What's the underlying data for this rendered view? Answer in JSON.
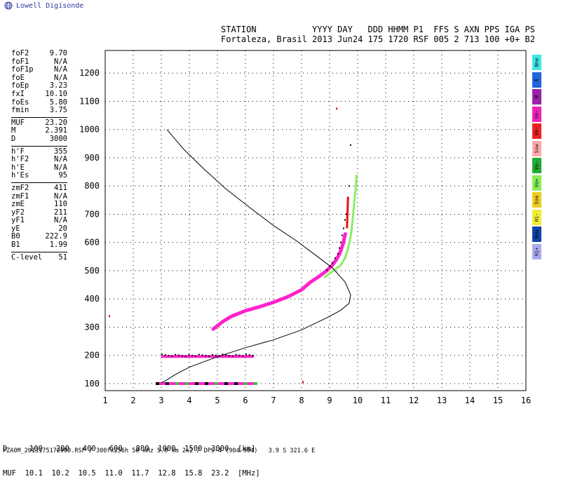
{
  "brand": {
    "label": "Lowell Digisonde"
  },
  "header": {
    "line1": "STATION           YYYY DAY   DDD HHMM P1  FFS S AXN PPS IGA PS",
    "line2": "Fortaleza, Brasil 2013 Jun24 175 1720 RSF 005 2 713 100 +0+ B2"
  },
  "params": [
    {
      "k": "foF2",
      "v": "9.70"
    },
    {
      "k": "foF1",
      "v": "N/A"
    },
    {
      "k": "foF1p",
      "v": "N/A"
    },
    {
      "k": "foE",
      "v": "N/A"
    },
    {
      "k": "foEp",
      "v": "3.23"
    },
    {
      "k": "fxI",
      "v": "10.10"
    },
    {
      "k": "foEs",
      "v": "5.80"
    },
    {
      "k": "fmin",
      "v": "3.75"
    },
    {
      "sep": true
    },
    {
      "k": "MUF",
      "v": "23.20"
    },
    {
      "k": "M",
      "v": "2.391"
    },
    {
      "k": "D",
      "v": "3000"
    },
    {
      "sep": true
    },
    {
      "k": "h'F",
      "v": "355"
    },
    {
      "k": "h'F2",
      "v": "N/A"
    },
    {
      "k": "h'E",
      "v": "N/A"
    },
    {
      "k": "h'Es",
      "v": "95"
    },
    {
      "sep": true
    },
    {
      "k": "zmF2",
      "v": "411"
    },
    {
      "k": "zmF1",
      "v": "N/A"
    },
    {
      "k": "zmE",
      "v": "110"
    },
    {
      "k": "yF2",
      "v": "211"
    },
    {
      "k": "yF1",
      "v": "N/A"
    },
    {
      "k": "yE",
      "v": "20"
    },
    {
      "k": "B0",
      "v": "222.9"
    },
    {
      "k": "B1",
      "v": "1.99"
    },
    {
      "sep": true
    },
    {
      "k": "C-level",
      "v": "51"
    }
  ],
  "legend": [
    {
      "label": "Nne",
      "color": "#3ee6e6"
    },
    {
      "label": "E",
      "color": "#2266dd"
    },
    {
      "label": "W",
      "color": "#9a22aa"
    },
    {
      "label": "Vo-",
      "color": "#ee22bb"
    },
    {
      "label": "X0-",
      "color": "#ee2222"
    },
    {
      "label": "Ssw",
      "color": "#ffaaaa"
    },
    {
      "label": "Vo-",
      "color": "#22aa33"
    },
    {
      "label": "Vo+",
      "color": "#88ee55"
    },
    {
      "label": "Sse",
      "color": "#eecc22"
    },
    {
      "label": "Hi-",
      "color": "#eeee33"
    },
    {
      "label": "Nnw",
      "color": "#1144aa"
    },
    {
      "label": "Hi+",
      "color": "#aaaaee"
    }
  ],
  "muf_table": {
    "line1": "D     100   200   400   600   800  1000  1500  3000  [km]",
    "line2": "MUF  10.1  10.2  10.5  11.0  11.7  12.8  15.8  23.2  [MHz]"
  },
  "footer": "FZA0M_2013175172000.RSF / 300fx256h 50 kHz 5.0 km 2x2 / DPS-4 (904-904)   3.9 S 321.6 E",
  "colors": {
    "magenta": "#ff22cc",
    "red": "#ee1111",
    "green": "#33cc33",
    "lightgreen": "#88ee66",
    "black": "#000000"
  },
  "chart_data": {
    "type": "scatter",
    "xlim": [
      1,
      16
    ],
    "ylim": [
      75,
      1280
    ],
    "x_ticks": [
      1,
      2,
      3,
      4,
      5,
      6,
      7,
      8,
      9,
      10,
      11,
      12,
      13,
      14,
      15,
      16
    ],
    "y_ticks": [
      100,
      200,
      300,
      400,
      500,
      600,
      700,
      800,
      900,
      1000,
      1100,
      1200
    ],
    "grid": true,
    "profile_line": [
      [
        3.2,
        1000
      ],
      [
        3.8,
        930
      ],
      [
        4.5,
        862
      ],
      [
        5.3,
        790
      ],
      [
        6.2,
        720
      ],
      [
        7.0,
        660
      ],
      [
        7.8,
        607
      ],
      [
        8.5,
        555
      ],
      [
        9.1,
        510
      ],
      [
        9.55,
        460
      ],
      [
        9.75,
        415
      ],
      [
        9.7,
        385
      ],
      [
        9.4,
        360
      ],
      [
        9.0,
        338
      ],
      [
        8.0,
        290
      ],
      [
        7.0,
        255
      ],
      [
        6.0,
        227
      ],
      [
        5.0,
        195
      ],
      [
        4.0,
        158
      ],
      [
        3.5,
        132
      ],
      [
        3.15,
        110
      ],
      [
        3.0,
        103
      ]
    ],
    "f_trace": [
      [
        4.85,
        293
      ],
      [
        5.0,
        305
      ],
      [
        5.2,
        320
      ],
      [
        5.5,
        338
      ],
      [
        6.0,
        358
      ],
      [
        6.5,
        372
      ],
      [
        7.0,
        388
      ],
      [
        7.5,
        407
      ],
      [
        8.0,
        432
      ],
      [
        8.3,
        458
      ],
      [
        8.6,
        478
      ],
      [
        8.9,
        500
      ],
      [
        9.1,
        520
      ],
      [
        9.25,
        540
      ],
      [
        9.38,
        565
      ],
      [
        9.48,
        595
      ],
      [
        9.56,
        630
      ]
    ],
    "f_red_spike": [
      [
        9.62,
        650
      ],
      [
        9.63,
        680
      ],
      [
        9.64,
        710
      ],
      [
        9.65,
        740
      ],
      [
        9.66,
        762
      ]
    ],
    "f_green_trace": [
      [
        8.8,
        475
      ],
      [
        9.0,
        490
      ],
      [
        9.2,
        505
      ],
      [
        9.4,
        520
      ],
      [
        9.55,
        545
      ],
      [
        9.65,
        575
      ],
      [
        9.72,
        605
      ],
      [
        9.78,
        640
      ],
      [
        9.82,
        680
      ],
      [
        9.86,
        720
      ],
      [
        9.9,
        760
      ],
      [
        9.94,
        800
      ],
      [
        9.96,
        840
      ]
    ],
    "f_black_dots": [
      [
        8.9,
        502
      ],
      [
        9.0,
        515
      ],
      [
        9.1,
        528
      ],
      [
        9.2,
        545
      ],
      [
        9.3,
        560
      ],
      [
        9.35,
        580
      ],
      [
        9.4,
        600
      ],
      [
        9.45,
        625
      ],
      [
        9.5,
        650
      ],
      [
        9.55,
        680
      ],
      [
        9.6,
        700
      ],
      [
        9.7,
        800
      ],
      [
        9.75,
        945
      ]
    ],
    "es_layer": {
      "xmin": 3.0,
      "xmax": 6.3,
      "y": 196
    },
    "e_layer": {
      "xmin": 2.8,
      "xmax": 6.3,
      "y": 100
    },
    "outliers": [
      [
        9.25,
        1075
      ],
      [
        1.15,
        340
      ],
      [
        8.05,
        107
      ]
    ]
  }
}
